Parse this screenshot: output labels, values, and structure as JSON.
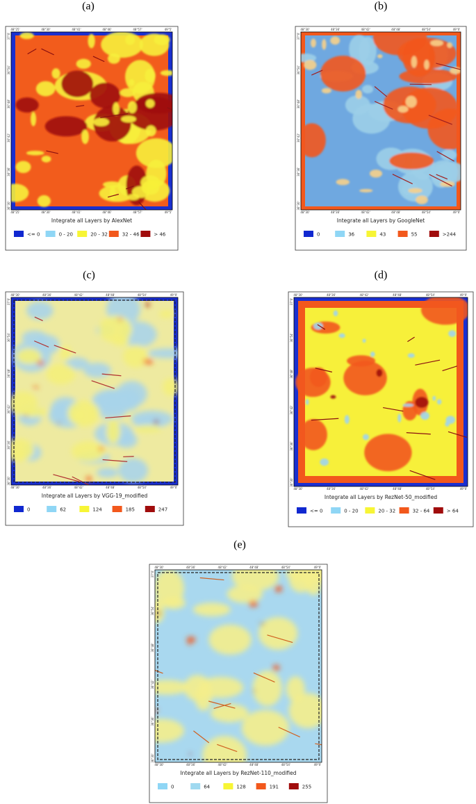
{
  "panels": [
    {
      "label": "(a)",
      "title": "Integrate all Layers by AlexNet",
      "xticks": [
        "48°25'",
        "48°30'",
        "48°41'",
        "48°46'",
        "48°57'",
        "49°5'"
      ],
      "yticks": [
        "37°0'",
        "36°54'",
        "36°48'",
        "36°42'",
        "36°36'",
        "36°30'"
      ],
      "legend": [
        {
          "label": "<= 0",
          "color": "#1028d0"
        },
        {
          "label": "0 - 20",
          "color": "#8fd6f5"
        },
        {
          "label": "20 - 32",
          "color": "#f7f535"
        },
        {
          "label": "32 - 46",
          "color": "#f2581c"
        },
        {
          "label": "> 46",
          "color": "#a00c0c"
        }
      ]
    },
    {
      "label": "(b)",
      "title": "Integrate all Layers by GoogleNet",
      "xticks": [
        "48°30'",
        "48°36'",
        "48°42'",
        "48°48'",
        "48°54'",
        "49°0'"
      ],
      "yticks": [
        "37°0'",
        "36°54'",
        "36°48'",
        "36°42'",
        "36°36'",
        "36°30'"
      ],
      "legend": [
        {
          "label": "0",
          "color": "#1028d0"
        },
        {
          "label": "36",
          "color": "#8fd6f5"
        },
        {
          "label": "43",
          "color": "#f7f535"
        },
        {
          "label": "55",
          "color": "#f2581c"
        },
        {
          "label": ">244",
          "color": "#a00c0c"
        }
      ]
    },
    {
      "label": "(c)",
      "title": "Integrate all Layers by VGG-19_modified",
      "xticks": [
        "48°30'",
        "48°36'",
        "48°42'",
        "48°48'",
        "48°54'",
        "49°0'"
      ],
      "yticks": [
        "37°0'",
        "36°54'",
        "36°48'",
        "36°42'",
        "36°36'",
        "36°30'"
      ],
      "legend": [
        {
          "label": "0",
          "color": "#1028d0"
        },
        {
          "label": "62",
          "color": "#8fd6f5"
        },
        {
          "label": "124",
          "color": "#f7f535"
        },
        {
          "label": "185",
          "color": "#f2581c"
        },
        {
          "label": "247",
          "color": "#a00c0c"
        }
      ]
    },
    {
      "label": "(d)",
      "title": "Integrate all Layers by RezNet-50_modified",
      "xticks": [
        "48°30'",
        "48°36'",
        "48°42'",
        "48°48'",
        "48°54'",
        "49°0'"
      ],
      "yticks": [
        "37°0'",
        "36°54'",
        "36°48'",
        "36°42'",
        "36°36'",
        "36°30'"
      ],
      "legend": [
        {
          "label": "<= 0",
          "color": "#1028d0"
        },
        {
          "label": "0 - 20",
          "color": "#8fd6f5"
        },
        {
          "label": "20 - 32",
          "color": "#f7f535"
        },
        {
          "label": "32 - 64",
          "color": "#f2581c"
        },
        {
          "label": "> 64",
          "color": "#a00c0c"
        }
      ]
    },
    {
      "label": "(e)",
      "title": "Integrate all Layers by RezNet-110_modified",
      "xticks": [
        "48°30'",
        "48°36'",
        "48°42'",
        "48°48'",
        "48°54'",
        "49°0'"
      ],
      "yticks": [
        "37°0'",
        "36°54'",
        "36°48'",
        "36°42'",
        "36°36'",
        "36°30'"
      ],
      "legend": [
        {
          "label": "0",
          "color": "#8fd6f5"
        },
        {
          "label": "64",
          "color": "#9fd9f0"
        },
        {
          "label": "128",
          "color": "#f7f535"
        },
        {
          "label": "191",
          "color": "#f2581c"
        },
        {
          "label": "255",
          "color": "#a00c0c"
        }
      ]
    }
  ]
}
